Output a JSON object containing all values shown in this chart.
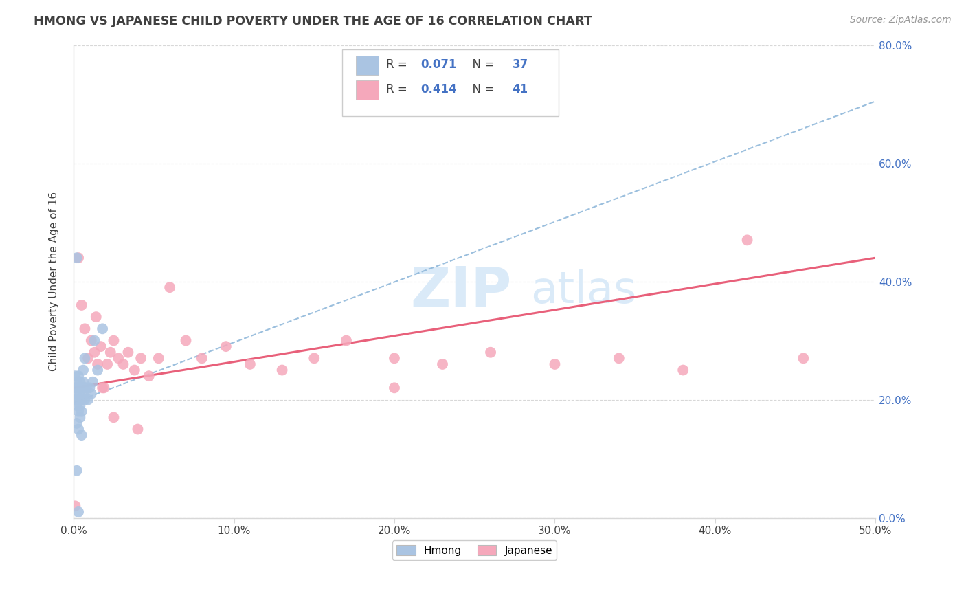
{
  "title": "HMONG VS JAPANESE CHILD POVERTY UNDER THE AGE OF 16 CORRELATION CHART",
  "source": "Source: ZipAtlas.com",
  "ylabel": "Child Poverty Under the Age of 16",
  "xlim": [
    0.0,
    0.5
  ],
  "ylim": [
    0.0,
    0.8
  ],
  "xticks": [
    0.0,
    0.1,
    0.2,
    0.3,
    0.4,
    0.5
  ],
  "yticks": [
    0.0,
    0.2,
    0.4,
    0.6,
    0.8
  ],
  "xtick_labels": [
    "0.0%",
    "10.0%",
    "20.0%",
    "30.0%",
    "40.0%",
    "50.0%"
  ],
  "ytick_labels": [
    "0.0%",
    "20.0%",
    "40.0%",
    "60.0%",
    "80.0%"
  ],
  "hmong_R": 0.071,
  "hmong_N": 37,
  "japanese_R": 0.414,
  "japanese_N": 41,
  "hmong_color": "#aac4e2",
  "japanese_color": "#f5a8bb",
  "hmong_line_color": "#8ab4d8",
  "japanese_line_color": "#e8607a",
  "text_blue": "#4472c4",
  "text_dark": "#404040",
  "background_color": "#ffffff",
  "watermark_zip": "ZIP",
  "watermark_atlas": "atlas",
  "watermark_color": "#daeaf8",
  "grid_color": "#d8d8d8",
  "hmong_x": [
    0.001,
    0.001,
    0.001,
    0.002,
    0.002,
    0.002,
    0.002,
    0.003,
    0.003,
    0.003,
    0.003,
    0.003,
    0.004,
    0.004,
    0.004,
    0.004,
    0.005,
    0.005,
    0.005,
    0.005,
    0.006,
    0.006,
    0.006,
    0.007,
    0.007,
    0.007,
    0.008,
    0.009,
    0.01,
    0.011,
    0.012,
    0.013,
    0.015,
    0.018,
    0.002,
    0.002,
    0.003
  ],
  "hmong_y": [
    0.22,
    0.24,
    0.2,
    0.21,
    0.23,
    0.19,
    0.16,
    0.22,
    0.24,
    0.2,
    0.18,
    0.15,
    0.23,
    0.21,
    0.19,
    0.17,
    0.22,
    0.2,
    0.18,
    0.14,
    0.23,
    0.21,
    0.25,
    0.22,
    0.2,
    0.27,
    0.22,
    0.2,
    0.22,
    0.21,
    0.23,
    0.3,
    0.25,
    0.32,
    0.44,
    0.08,
    0.01
  ],
  "japanese_x": [
    0.001,
    0.003,
    0.005,
    0.007,
    0.009,
    0.011,
    0.013,
    0.015,
    0.017,
    0.019,
    0.021,
    0.023,
    0.025,
    0.028,
    0.031,
    0.034,
    0.038,
    0.042,
    0.047,
    0.053,
    0.06,
    0.07,
    0.08,
    0.095,
    0.11,
    0.13,
    0.15,
    0.17,
    0.2,
    0.23,
    0.26,
    0.3,
    0.34,
    0.38,
    0.42,
    0.455,
    0.014,
    0.018,
    0.025,
    0.04,
    0.2
  ],
  "japanese_y": [
    0.02,
    0.44,
    0.36,
    0.32,
    0.27,
    0.3,
    0.28,
    0.26,
    0.29,
    0.22,
    0.26,
    0.28,
    0.3,
    0.27,
    0.26,
    0.28,
    0.25,
    0.27,
    0.24,
    0.27,
    0.39,
    0.3,
    0.27,
    0.29,
    0.26,
    0.25,
    0.27,
    0.3,
    0.27,
    0.26,
    0.28,
    0.26,
    0.27,
    0.25,
    0.47,
    0.27,
    0.34,
    0.22,
    0.17,
    0.15,
    0.22
  ],
  "hmong_trend_x": [
    0.0,
    0.5
  ],
  "hmong_trend_y": [
    0.195,
    0.705
  ],
  "japanese_trend_x": [
    0.0,
    0.5
  ],
  "japanese_trend_y": [
    0.22,
    0.44
  ]
}
